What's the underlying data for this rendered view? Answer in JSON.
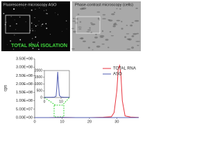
{
  "panels": {
    "left_title": "Fluorescence microscopy ASO",
    "left_label": "TOTAL RNA ISOLATION",
    "right_title": "Phase-contrast microscopy (cells)"
  },
  "chart_data": [
    {
      "type": "line",
      "ylabel": "cps",
      "x": [
        0,
        5,
        10,
        15,
        20,
        25,
        28,
        29,
        30,
        30.5,
        31,
        31.5,
        32,
        33,
        35,
        38
      ],
      "series": [
        {
          "name": "TOTAL RNA",
          "color": "#e8323c",
          "values": [
            0,
            0,
            1000000,
            0,
            0,
            2000000,
            5000000,
            30000000,
            160000000,
            290000000,
            310000000,
            250000000,
            100000000,
            10000000,
            3000000,
            1000000
          ]
        },
        {
          "name": "ASO",
          "color": "#4f5bb0",
          "values": [
            0,
            0,
            1000000,
            0,
            0,
            0,
            0,
            0,
            0,
            0,
            0,
            0,
            0,
            0,
            0,
            0
          ]
        }
      ],
      "xlim": [
        0,
        38
      ],
      "xticks": [
        0,
        10,
        20,
        30
      ],
      "ylim": [
        0,
        350000000
      ],
      "yticks": [
        {
          "value": 0,
          "label": "0.00E+00"
        },
        {
          "value": 50000000,
          "label": "5.00E+07"
        },
        {
          "value": 100000000,
          "label": "1.00E+08"
        },
        {
          "value": 150000000,
          "label": "1.50E+08"
        },
        {
          "value": 200000000,
          "label": "2.00E+08"
        },
        {
          "value": 250000000,
          "label": "2.50E+08"
        },
        {
          "value": 300000000,
          "label": "3.00E+08"
        },
        {
          "value": 350000000,
          "label": "3.50E+08"
        }
      ],
      "legend": "upper right"
    },
    {
      "type": "line",
      "x": [
        0,
        4,
        6,
        7,
        7.5,
        8,
        8.5,
        9,
        10,
        12,
        15
      ],
      "series": [
        {
          "color": "#4f5bb0",
          "values": [
            20,
            20,
            30,
            100,
            800,
            1900,
            900,
            150,
            40,
            20,
            20
          ]
        }
      ],
      "xlim": [
        0,
        15
      ],
      "xticks": [
        0,
        10
      ],
      "ylim": [
        0,
        2000
      ],
      "yticks": [
        0,
        500,
        1000,
        1500,
        2000
      ]
    }
  ]
}
